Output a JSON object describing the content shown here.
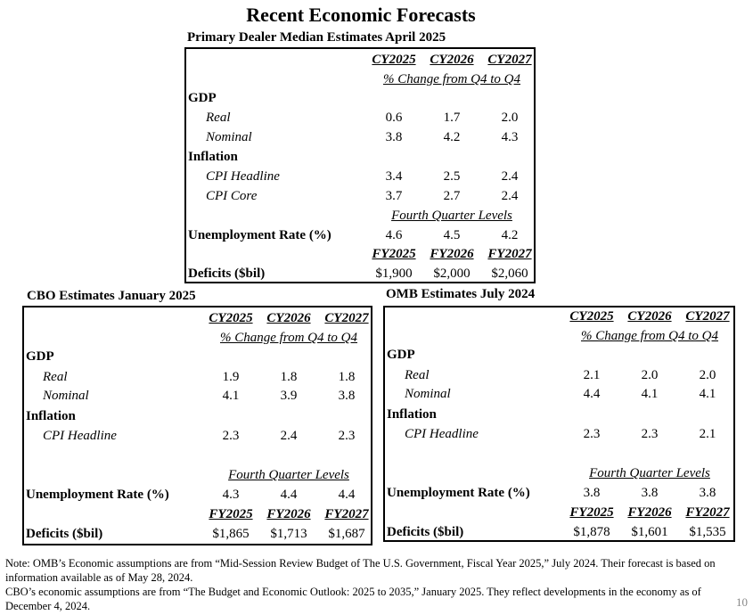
{
  "title": "Recent Economic Forecasts",
  "page_number": "10",
  "col_sublabel": "% Change from Q4 to Q4",
  "fourth_quarter": "Fourth Quarter Levels",
  "labels": {
    "gdp": "GDP",
    "real": "Real",
    "nominal": "Nominal",
    "inflation": "Inflation",
    "cpi_headline": "CPI Headline",
    "cpi_core": "CPI Core",
    "unemployment": "Unemployment Rate (%)",
    "deficits": "Deficits ($bil)"
  },
  "dealer": {
    "title": "Primary Dealer Median Estimates April 2025",
    "cy": [
      "CY2025",
      "CY2026",
      "CY2027"
    ],
    "fy": [
      "FY2025",
      "FY2026",
      "FY2027"
    ],
    "real": [
      "0.6",
      "1.7",
      "2.0"
    ],
    "nominal": [
      "3.8",
      "4.2",
      "4.3"
    ],
    "cpi_headline": [
      "3.4",
      "2.5",
      "2.4"
    ],
    "cpi_core": [
      "3.7",
      "2.7",
      "2.4"
    ],
    "unemployment": [
      "4.6",
      "4.5",
      "4.2"
    ],
    "deficits": [
      "$1,900",
      "$2,000",
      "$2,060"
    ]
  },
  "cbo": {
    "title": "CBO Estimates January 2025",
    "cy": [
      "CY2025",
      "CY2026",
      "CY2027"
    ],
    "fy": [
      "FY2025",
      "FY2026",
      "FY2027"
    ],
    "real": [
      "1.9",
      "1.8",
      "1.8"
    ],
    "nominal": [
      "4.1",
      "3.9",
      "3.8"
    ],
    "cpi_headline": [
      "2.3",
      "2.4",
      "2.3"
    ],
    "unemployment": [
      "4.3",
      "4.4",
      "4.4"
    ],
    "deficits": [
      "$1,865",
      "$1,713",
      "$1,687"
    ]
  },
  "omb": {
    "title": "OMB Estimates July 2024",
    "cy": [
      "CY2025",
      "CY2026",
      "CY2027"
    ],
    "fy": [
      "FY2025",
      "FY2026",
      "FY2027"
    ],
    "real": [
      "2.1",
      "2.0",
      "2.0"
    ],
    "nominal": [
      "4.4",
      "4.1",
      "4.1"
    ],
    "cpi_headline": [
      "2.3",
      "2.3",
      "2.1"
    ],
    "unemployment": [
      "3.8",
      "3.8",
      "3.8"
    ],
    "deficits": [
      "$1,878",
      "$1,601",
      "$1,535"
    ]
  },
  "notes": [
    "Note: OMB’s Economic assumptions are from “Mid-Session Review Budget of The U.S. Government, Fiscal Year 2025,” July 2024. Their forecast is based on information available as of May 28, 2024.",
    "CBO’s economic assumptions are from “The Budget and Economic Outlook: 2025 to 2035,” January 2025. They reflect developments in the economy as of December 4, 2024."
  ]
}
